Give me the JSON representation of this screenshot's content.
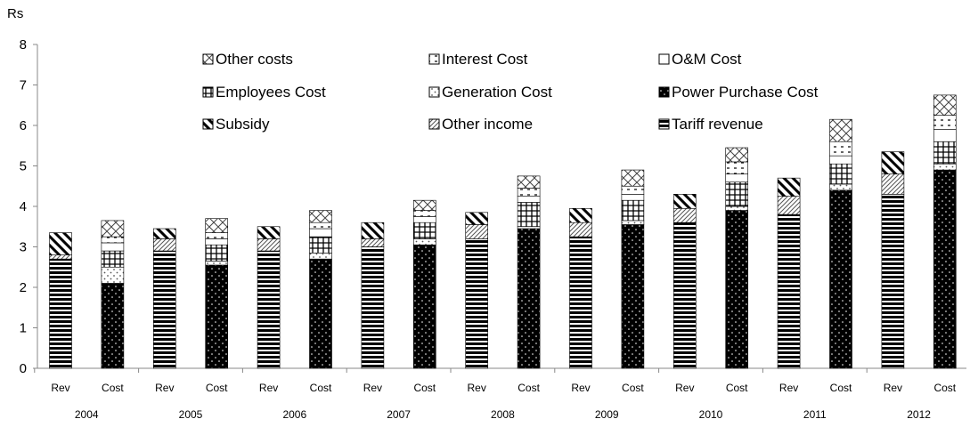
{
  "chart_data": {
    "type": "bar",
    "stacked": true,
    "y_unit_label": "Rs",
    "ylim": [
      0,
      8
    ],
    "yticks": [
      "0",
      "1",
      "2",
      "3",
      "4",
      "5",
      "6",
      "7",
      "8"
    ],
    "grid": false,
    "legend_position": "top, inside plot area, three columns",
    "years": [
      "2004",
      "2005",
      "2006",
      "2007",
      "2008",
      "2009",
      "2010",
      "2011",
      "2012"
    ],
    "bar_labels": [
      "Rev",
      "Cost"
    ],
    "legend": [
      "Other costs",
      "Interest Cost",
      "O&M Cost",
      "Employees Cost",
      "Generation Cost",
      "Power Purchase Cost",
      "Subsidy",
      "Other income",
      "Tariff revenue"
    ],
    "revenue_series": [
      "Tariff revenue",
      "Other income",
      "Subsidy"
    ],
    "cost_series": [
      "Power Purchase Cost",
      "Generation Cost",
      "Employees Cost",
      "O&M Cost",
      "Interest Cost",
      "Other costs"
    ],
    "revenue": {
      "Tariff revenue": [
        2.7,
        2.9,
        2.9,
        3.0,
        3.2,
        3.25,
        3.6,
        3.8,
        4.3
      ],
      "Other income": [
        0.1,
        0.3,
        0.3,
        0.2,
        0.35,
        0.35,
        0.35,
        0.45,
        0.5
      ],
      "Subsidy": [
        0.55,
        0.25,
        0.3,
        0.4,
        0.3,
        0.35,
        0.35,
        0.45,
        0.55
      ]
    },
    "cost": {
      "Power Purchase Cost": [
        2.1,
        2.55,
        2.7,
        3.05,
        3.45,
        3.55,
        3.9,
        4.4,
        4.9
      ],
      "Generation Cost": [
        0.4,
        0.1,
        0.15,
        0.15,
        0.05,
        0.1,
        0.1,
        0.15,
        0.15
      ],
      "Employees Cost": [
        0.4,
        0.4,
        0.4,
        0.4,
        0.6,
        0.5,
        0.6,
        0.5,
        0.55
      ],
      "O&M Cost": [
        0.2,
        0.15,
        0.2,
        0.15,
        0.15,
        0.15,
        0.2,
        0.2,
        0.3
      ],
      "Interest Cost": [
        0.15,
        0.15,
        0.15,
        0.15,
        0.2,
        0.2,
        0.3,
        0.35,
        0.35
      ],
      "Other costs": [
        0.4,
        0.35,
        0.3,
        0.25,
        0.3,
        0.4,
        0.35,
        0.55,
        0.5
      ]
    }
  }
}
